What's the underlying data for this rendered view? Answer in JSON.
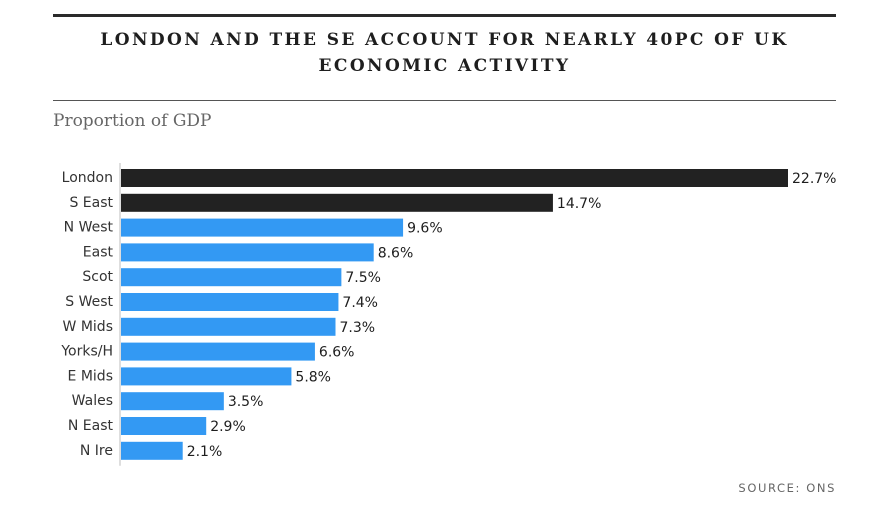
{
  "header": {
    "title": "LONDON AND THE SE ACCOUNT FOR NEARLY 40PC OF UK\nECONOMIC ACTIVITY",
    "subtitle": "Proportion of GDP"
  },
  "footer": {
    "source": "SOURCE: ONS"
  },
  "colors": {
    "highlight": "#222222",
    "default": "#3399f3"
  },
  "chart_data": {
    "type": "bar",
    "orientation": "horizontal",
    "title": "LONDON AND THE SE ACCOUNT FOR NEARLY 40PC OF UK ECONOMIC ACTIVITY",
    "subtitle": "Proportion of GDP",
    "categories": [
      "London",
      "S East",
      "N West",
      "East",
      "Scot",
      "S West",
      "W Mids",
      "Yorks/H",
      "E Mids",
      "Wales",
      "N East",
      "N Ire"
    ],
    "values": [
      22.7,
      14.7,
      9.6,
      8.6,
      7.5,
      7.4,
      7.3,
      6.6,
      5.8,
      3.5,
      2.9,
      2.1
    ],
    "value_labels": [
      "22.7%",
      "14.7%",
      "9.6%",
      "8.6%",
      "7.5%",
      "7.4%",
      "7.3%",
      "6.6%",
      "5.8%",
      "3.5%",
      "2.9%",
      "2.1%"
    ],
    "highlighted": [
      "London",
      "S East"
    ],
    "xlim": [
      0,
      22.7
    ],
    "grid": false,
    "legend": "none",
    "source": "SOURCE: ONS"
  }
}
